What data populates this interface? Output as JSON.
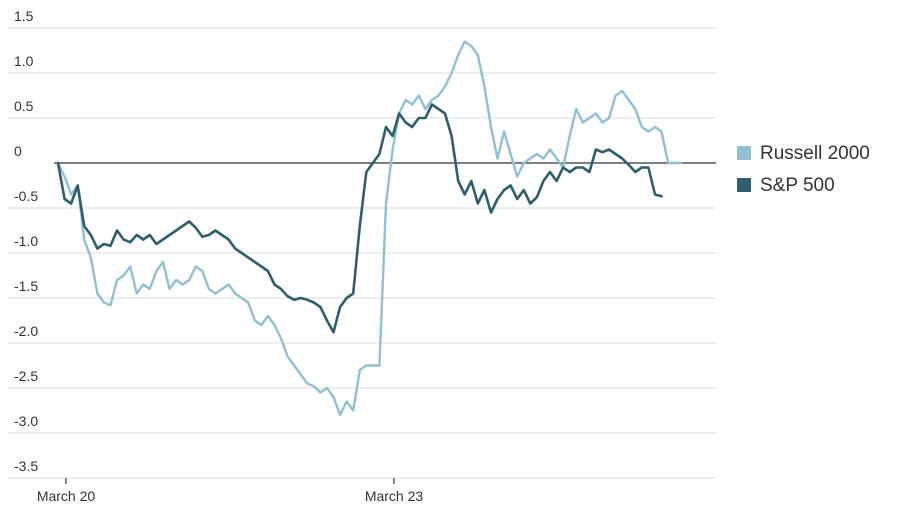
{
  "chart_data": {
    "type": "line",
    "title": "",
    "xlabel": "",
    "ylabel": "",
    "ylim": [
      -3.5,
      1.5
    ],
    "yticks": [
      {
        "value": 1.5,
        "label": "1.5"
      },
      {
        "value": 1.0,
        "label": "1.0"
      },
      {
        "value": 0.5,
        "label": "0.5"
      },
      {
        "value": 0,
        "label": "0"
      },
      {
        "value": -0.5,
        "label": "-0.5"
      },
      {
        "value": -1.0,
        "label": "-1.0"
      },
      {
        "value": -1.5,
        "label": "-1.5"
      },
      {
        "value": -2.0,
        "label": "-2.0"
      },
      {
        "value": -2.5,
        "label": "-2.5"
      },
      {
        "value": -3.0,
        "label": "-3.0"
      },
      {
        "value": -3.5,
        "label": "-3.5"
      }
    ],
    "xrange": [
      0,
      100
    ],
    "xticks": [
      {
        "value": 0,
        "label": "March 20"
      },
      {
        "value": 50,
        "label": "March 23"
      }
    ],
    "grid": true,
    "legend_position": "right",
    "series": [
      {
        "name": "Russell 2000",
        "color": "#8fc1d1",
        "points": [
          [
            0,
            0.0
          ],
          [
            1,
            -0.15
          ],
          [
            2,
            -0.35
          ],
          [
            3,
            -0.25
          ],
          [
            4,
            -0.85
          ],
          [
            5,
            -1.05
          ],
          [
            6,
            -1.45
          ],
          [
            7,
            -1.55
          ],
          [
            8,
            -1.58
          ],
          [
            9,
            -1.3
          ],
          [
            10,
            -1.25
          ],
          [
            11,
            -1.15
          ],
          [
            12,
            -1.45
          ],
          [
            13,
            -1.35
          ],
          [
            14,
            -1.4
          ],
          [
            15,
            -1.2
          ],
          [
            16,
            -1.1
          ],
          [
            17,
            -1.4
          ],
          [
            18,
            -1.3
          ],
          [
            19,
            -1.35
          ],
          [
            20,
            -1.3
          ],
          [
            21,
            -1.15
          ],
          [
            22,
            -1.2
          ],
          [
            23,
            -1.4
          ],
          [
            24,
            -1.45
          ],
          [
            25,
            -1.4
          ],
          [
            26,
            -1.35
          ],
          [
            27,
            -1.45
          ],
          [
            28,
            -1.5
          ],
          [
            29,
            -1.55
          ],
          [
            30,
            -1.75
          ],
          [
            31,
            -1.8
          ],
          [
            32,
            -1.7
          ],
          [
            33,
            -1.8
          ],
          [
            34,
            -1.95
          ],
          [
            35,
            -2.15
          ],
          [
            36,
            -2.25
          ],
          [
            37,
            -2.35
          ],
          [
            38,
            -2.45
          ],
          [
            39,
            -2.48
          ],
          [
            40,
            -2.55
          ],
          [
            41,
            -2.5
          ],
          [
            42,
            -2.6
          ],
          [
            43,
            -2.8
          ],
          [
            44,
            -2.65
          ],
          [
            45,
            -2.75
          ],
          [
            46,
            -2.3
          ],
          [
            47,
            -2.25
          ],
          [
            48,
            -2.25
          ],
          [
            49,
            -2.25
          ],
          [
            50,
            -0.45
          ],
          [
            51,
            0.15
          ],
          [
            52,
            0.55
          ],
          [
            53,
            0.7
          ],
          [
            54,
            0.65
          ],
          [
            55,
            0.75
          ],
          [
            56,
            0.6
          ],
          [
            57,
            0.7
          ],
          [
            58,
            0.75
          ],
          [
            59,
            0.85
          ],
          [
            60,
            1.0
          ],
          [
            61,
            1.2
          ],
          [
            62,
            1.35
          ],
          [
            63,
            1.3
          ],
          [
            64,
            1.2
          ],
          [
            65,
            0.85
          ],
          [
            66,
            0.4
          ],
          [
            67,
            0.05
          ],
          [
            68,
            0.35
          ],
          [
            69,
            0.1
          ],
          [
            70,
            -0.15
          ],
          [
            71,
            0.0
          ],
          [
            72,
            0.05
          ],
          [
            73,
            0.1
          ],
          [
            74,
            0.05
          ],
          [
            75,
            0.15
          ],
          [
            76,
            0.05
          ],
          [
            77,
            -0.05
          ],
          [
            78,
            0.3
          ],
          [
            79,
            0.6
          ],
          [
            80,
            0.45
          ],
          [
            81,
            0.5
          ],
          [
            82,
            0.55
          ],
          [
            83,
            0.45
          ],
          [
            84,
            0.5
          ],
          [
            85,
            0.75
          ],
          [
            86,
            0.8
          ],
          [
            87,
            0.7
          ],
          [
            88,
            0.6
          ],
          [
            89,
            0.4
          ],
          [
            90,
            0.35
          ],
          [
            91,
            0.4
          ],
          [
            92,
            0.35
          ],
          [
            93,
            0.0
          ],
          [
            94,
            0.0
          ],
          [
            95,
            0.0
          ]
        ]
      },
      {
        "name": "S&P 500",
        "color": "#2f5f6d",
        "points": [
          [
            0,
            0.0
          ],
          [
            1,
            -0.4
          ],
          [
            2,
            -0.45
          ],
          [
            3,
            -0.25
          ],
          [
            4,
            -0.7
          ],
          [
            5,
            -0.8
          ],
          [
            6,
            -0.95
          ],
          [
            7,
            -0.9
          ],
          [
            8,
            -0.92
          ],
          [
            9,
            -0.75
          ],
          [
            10,
            -0.85
          ],
          [
            11,
            -0.88
          ],
          [
            12,
            -0.8
          ],
          [
            13,
            -0.85
          ],
          [
            14,
            -0.8
          ],
          [
            15,
            -0.9
          ],
          [
            16,
            -0.85
          ],
          [
            17,
            -0.8
          ],
          [
            18,
            -0.75
          ],
          [
            19,
            -0.7
          ],
          [
            20,
            -0.65
          ],
          [
            21,
            -0.72
          ],
          [
            22,
            -0.82
          ],
          [
            23,
            -0.8
          ],
          [
            24,
            -0.75
          ],
          [
            25,
            -0.8
          ],
          [
            26,
            -0.85
          ],
          [
            27,
            -0.95
          ],
          [
            28,
            -1.0
          ],
          [
            29,
            -1.05
          ],
          [
            30,
            -1.1
          ],
          [
            31,
            -1.15
          ],
          [
            32,
            -1.2
          ],
          [
            33,
            -1.35
          ],
          [
            34,
            -1.4
          ],
          [
            35,
            -1.48
          ],
          [
            36,
            -1.52
          ],
          [
            37,
            -1.5
          ],
          [
            38,
            -1.52
          ],
          [
            39,
            -1.55
          ],
          [
            40,
            -1.6
          ],
          [
            41,
            -1.75
          ],
          [
            42,
            -1.88
          ],
          [
            43,
            -1.6
          ],
          [
            44,
            -1.5
          ],
          [
            45,
            -1.45
          ],
          [
            46,
            -0.7
          ],
          [
            47,
            -0.1
          ],
          [
            48,
            0.0
          ],
          [
            49,
            0.1
          ],
          [
            50,
            0.4
          ],
          [
            51,
            0.3
          ],
          [
            52,
            0.55
          ],
          [
            53,
            0.45
          ],
          [
            54,
            0.4
          ],
          [
            55,
            0.5
          ],
          [
            56,
            0.5
          ],
          [
            57,
            0.65
          ],
          [
            58,
            0.6
          ],
          [
            59,
            0.55
          ],
          [
            60,
            0.3
          ],
          [
            61,
            -0.2
          ],
          [
            62,
            -0.35
          ],
          [
            63,
            -0.2
          ],
          [
            64,
            -0.45
          ],
          [
            65,
            -0.3
          ],
          [
            66,
            -0.55
          ],
          [
            67,
            -0.4
          ],
          [
            68,
            -0.3
          ],
          [
            69,
            -0.25
          ],
          [
            70,
            -0.4
          ],
          [
            71,
            -0.3
          ],
          [
            72,
            -0.45
          ],
          [
            73,
            -0.38
          ],
          [
            74,
            -0.2
          ],
          [
            75,
            -0.1
          ],
          [
            76,
            -0.2
          ],
          [
            77,
            -0.05
          ],
          [
            78,
            -0.1
          ],
          [
            79,
            -0.05
          ],
          [
            80,
            -0.05
          ],
          [
            81,
            -0.1
          ],
          [
            82,
            0.15
          ],
          [
            83,
            0.12
          ],
          [
            84,
            0.15
          ],
          [
            85,
            0.1
          ],
          [
            86,
            0.05
          ],
          [
            87,
            -0.02
          ],
          [
            88,
            -0.1
          ],
          [
            89,
            -0.05
          ],
          [
            90,
            -0.05
          ],
          [
            91,
            -0.35
          ],
          [
            92,
            -0.37
          ]
        ]
      }
    ]
  }
}
